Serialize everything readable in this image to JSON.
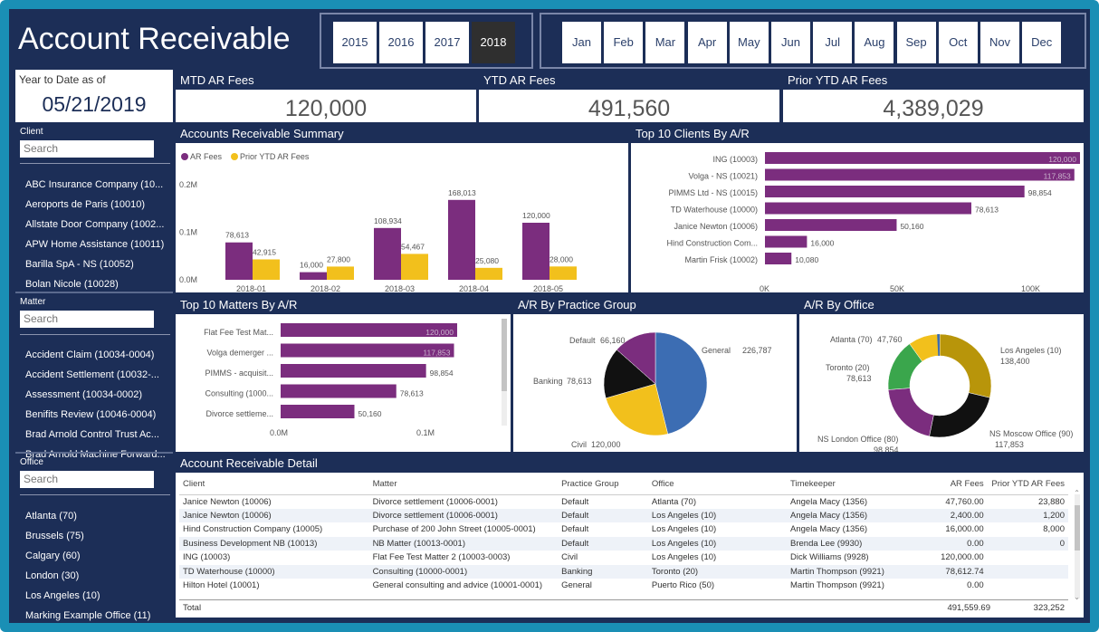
{
  "header": {
    "title": "Account Receivable",
    "years": [
      "2015",
      "2016",
      "2017",
      "2018"
    ],
    "selected_year": "2018",
    "months": [
      "Jan",
      "Feb",
      "Mar",
      "Apr",
      "May",
      "Jun",
      "Jul",
      "Aug",
      "Sep",
      "Oct",
      "Nov",
      "Dec"
    ]
  },
  "ytd": {
    "label": "Year to Date as of",
    "date": "05/21/2019"
  },
  "kpis": [
    {
      "label": "MTD AR Fees",
      "value": "120,000"
    },
    {
      "label": "YTD AR Fees",
      "value": "491,560"
    },
    {
      "label": "Prior YTD AR Fees",
      "value": "4,389,029"
    }
  ],
  "filters": {
    "client": {
      "label": "Client",
      "placeholder": "Search",
      "items": [
        "ABC Insurance Company (10...",
        "Aeroports de Paris (10010)",
        "Allstate Door Company (1002...",
        "APW Home Assistance (10011)",
        "Barilla SpA - NS (10052)",
        "Bolan Nicole (10028)"
      ]
    },
    "matter": {
      "label": "Matter",
      "placeholder": "Search",
      "items": [
        "Accident Claim (10034-0004)",
        "Accident Settlement (10032-...",
        "Assessment (10034-0002)",
        "Benifits Review (10046-0004)",
        "Brad Arnold Control Trust Ac...",
        "Brad Arnold Machine Forward..."
      ]
    },
    "office": {
      "label": "Office",
      "placeholder": "Search",
      "items": [
        "Atlanta (70)",
        "Brussels (75)",
        "Calgary (60)",
        "London (30)",
        "Los Angeles (10)",
        "Marking Example Office (11)"
      ]
    }
  },
  "panels": {
    "ar_summary": "Accounts Receivable Summary",
    "top_clients": "Top 10 Clients By A/R",
    "top_matters": "Top 10 Matters By A/R",
    "practice": "A/R By Practice Group",
    "office": "A/R By Office",
    "detail": "Account Receivable Detail"
  },
  "colors": {
    "purple": "#7b2d7e",
    "yellow": "#f2c01c",
    "navy": "#1c2e57",
    "blue": "#3c6db3",
    "black": "#111111",
    "green": "#3aa64c",
    "gold": "#b8950a"
  },
  "chart_data": [
    {
      "type": "bar",
      "title": "Accounts Receivable Summary",
      "categories": [
        "2018-01",
        "2018-02",
        "2018-03",
        "2018-04",
        "2018-05"
      ],
      "series": [
        {
          "name": "AR Fees",
          "values": [
            78613,
            16000,
            108934,
            168013,
            120000
          ],
          "labels": [
            "78,613",
            "16,000",
            "108,934",
            "168,013",
            "120,000"
          ]
        },
        {
          "name": "Prior YTD AR Fees",
          "values": [
            42915,
            27800,
            54467,
            25080,
            28000
          ],
          "labels": [
            "42,915",
            "27,800",
            "54,467",
            "25,080",
            "28,000"
          ]
        }
      ],
      "ylim": [
        0,
        200000
      ],
      "yticks": [
        "0.0M",
        "0.1M",
        "0.2M"
      ],
      "legend": "top-left"
    },
    {
      "type": "bar",
      "title": "Top 10 Clients By A/R",
      "orientation": "horizontal",
      "categories": [
        "ING (10003)",
        "Volga - NS (10021)",
        "PIMMS Ltd - NS (10015)",
        "TD Waterhouse (10000)",
        "Janice Newton (10006)",
        "Hind Construction Com...",
        "Martin Frisk (10002)"
      ],
      "values": [
        120000,
        117853,
        98854,
        78613,
        50160,
        16000,
        10080
      ],
      "labels": [
        "120,000",
        "117,853",
        "98,854",
        "78,613",
        "50,160",
        "16,000",
        "10,080"
      ],
      "xlim": [
        0,
        120000
      ],
      "xticks": [
        "0K",
        "50K",
        "100K"
      ]
    },
    {
      "type": "bar",
      "title": "Top 10 Matters By A/R",
      "orientation": "horizontal",
      "categories": [
        "Flat Fee Test Mat...",
        "Volga demerger ...",
        "PIMMS - acquisit...",
        "Consulting (1000...",
        "Divorce settleme..."
      ],
      "values": [
        120000,
        117853,
        98854,
        78613,
        50160
      ],
      "labels": [
        "120,000",
        "117,853",
        "98,854",
        "78,613",
        "50,160"
      ],
      "xlim": [
        0,
        120000
      ],
      "xticks": [
        "0.0M",
        "0.1M"
      ]
    },
    {
      "type": "pie",
      "title": "A/R By Practice Group",
      "labels": [
        "General",
        "Civil",
        "Banking",
        "Default"
      ],
      "values": [
        226787,
        120000,
        78613,
        66160
      ],
      "value_labels": [
        "226,787",
        "120,000",
        "78,613",
        "66,160"
      ]
    },
    {
      "type": "pie",
      "title": "A/R By Office",
      "donut": true,
      "labels": [
        "Los Angeles (10)",
        "NS Moscow Office (90)",
        "NS London Office (80)",
        "Toronto (20)",
        "Atlanta (70)"
      ],
      "values": [
        138400,
        117853,
        98854,
        78613,
        47760
      ],
      "value_labels": [
        "138,400",
        "117,853",
        "98,854",
        "78,613",
        "47,760"
      ]
    }
  ],
  "table": {
    "headers": [
      "Client",
      "Matter",
      "Practice Group",
      "Office",
      "Timekeeper",
      "AR Fees",
      "Prior YTD AR Fees"
    ],
    "rows": [
      [
        "Janice Newton (10006)",
        "Divorce settlement (10006-0001)",
        "Default",
        "Atlanta (70)",
        "Angela Macy (1356)",
        "47,760.00",
        "23,880"
      ],
      [
        "Janice Newton (10006)",
        "Divorce settlement (10006-0001)",
        "Default",
        "Los Angeles (10)",
        "Angela Macy (1356)",
        "2,400.00",
        "1,200"
      ],
      [
        "Hind Construction Company (10005)",
        "Purchase of 200 John Street (10005-0001)",
        "Default",
        "Los Angeles (10)",
        "Angela Macy (1356)",
        "16,000.00",
        "8,000"
      ],
      [
        "Business Development NB (10013)",
        "NB Matter (10013-0001)",
        "Default",
        "Los Angeles (10)",
        "Brenda Lee (9930)",
        "0.00",
        "0"
      ],
      [
        "ING (10003)",
        "Flat Fee Test Matter 2 (10003-0003)",
        "Civil",
        "Los Angeles (10)",
        "Dick Williams (9928)",
        "120,000.00",
        ""
      ],
      [
        "TD Waterhouse (10000)",
        "Consulting (10000-0001)",
        "Banking",
        "Toronto (20)",
        "Martin Thompson (9921)",
        "78,612.74",
        ""
      ],
      [
        "Hilton Hotel (10001)",
        "General consulting and advice (10001-0001)",
        "General",
        "Puerto Rico (50)",
        "Martin Thompson (9921)",
        "0.00",
        ""
      ]
    ],
    "total": {
      "label": "Total",
      "ar": "491,559.69",
      "prior": "323,252"
    }
  }
}
